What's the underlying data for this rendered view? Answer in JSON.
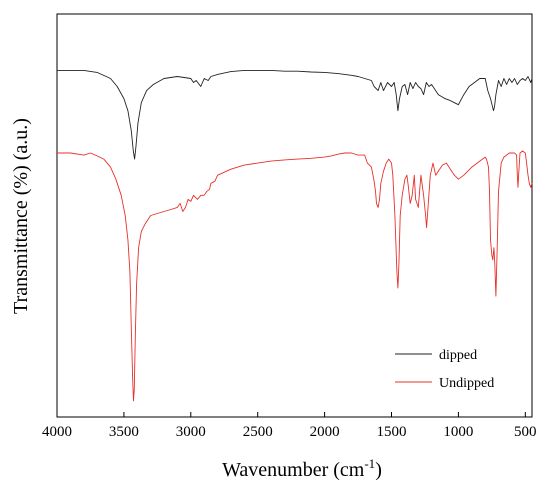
{
  "chart_data": {
    "type": "line",
    "xlabel": "Wavenumber (cm",
    "xlabel_sup": "-1",
    "xlabel_tail": ")",
    "ylabel": "Transmittance (%) (a.u.)",
    "xlim": [
      4000,
      450
    ],
    "x_reversed": true,
    "ylim": [
      0,
      1
    ],
    "y_ticks_shown": false,
    "grid": false,
    "legend_position": "bottom-right",
    "x_ticks": [
      4000,
      3500,
      3000,
      2500,
      2000,
      1500,
      1000,
      500
    ],
    "x_tick_labels": [
      "4000",
      "3500",
      "3000",
      "2500",
      "2000",
      "1500",
      "1000",
      "500"
    ],
    "series": [
      {
        "name": "dipped",
        "color": "#222222",
        "x": [
          4000,
          3800,
          3700,
          3600,
          3550,
          3500,
          3470,
          3445,
          3430,
          3420,
          3410,
          3395,
          3370,
          3330,
          3280,
          3200,
          3100,
          3000,
          2980,
          2960,
          2925,
          2900,
          2870,
          2850,
          2800,
          2700,
          2600,
          2500,
          2400,
          2300,
          2200,
          2100,
          2000,
          1900,
          1800,
          1750,
          1700,
          1650,
          1630,
          1600,
          1580,
          1560,
          1530,
          1500,
          1480,
          1465,
          1452,
          1440,
          1420,
          1400,
          1380,
          1360,
          1340,
          1320,
          1300,
          1280,
          1260,
          1240,
          1220,
          1200,
          1150,
          1100,
          1060,
          1030,
          1000,
          960,
          920,
          880,
          860,
          840,
          800,
          780,
          760,
          745,
          738,
          730,
          720,
          700,
          680,
          660,
          640,
          620,
          600,
          580,
          560,
          540,
          520,
          500,
          480,
          460,
          450
        ],
        "y": [
          0.86,
          0.86,
          0.855,
          0.84,
          0.82,
          0.79,
          0.76,
          0.71,
          0.66,
          0.64,
          0.67,
          0.73,
          0.78,
          0.81,
          0.825,
          0.84,
          0.845,
          0.84,
          0.83,
          0.835,
          0.82,
          0.84,
          0.835,
          0.845,
          0.85,
          0.857,
          0.86,
          0.86,
          0.86,
          0.858,
          0.858,
          0.856,
          0.855,
          0.852,
          0.848,
          0.845,
          0.84,
          0.835,
          0.82,
          0.81,
          0.83,
          0.81,
          0.83,
          0.82,
          0.83,
          0.8,
          0.76,
          0.79,
          0.82,
          0.825,
          0.8,
          0.83,
          0.815,
          0.83,
          0.82,
          0.815,
          0.8,
          0.83,
          0.82,
          0.825,
          0.8,
          0.79,
          0.785,
          0.78,
          0.775,
          0.8,
          0.82,
          0.83,
          0.835,
          0.84,
          0.84,
          0.81,
          0.79,
          0.77,
          0.76,
          0.77,
          0.8,
          0.835,
          0.82,
          0.84,
          0.825,
          0.84,
          0.83,
          0.84,
          0.825,
          0.835,
          0.84,
          0.835,
          0.845,
          0.83,
          0.84
        ]
      },
      {
        "name": "Undipped",
        "color": "#e8302a",
        "x": [
          4000,
          3900,
          3800,
          3750,
          3700,
          3650,
          3600,
          3560,
          3520,
          3490,
          3470,
          3455,
          3445,
          3435,
          3428,
          3422,
          3415,
          3405,
          3390,
          3370,
          3340,
          3300,
          3250,
          3200,
          3150,
          3100,
          3080,
          3060,
          3040,
          3020,
          3000,
          2980,
          2950,
          2925,
          2900,
          2880,
          2860,
          2850,
          2820,
          2800,
          2700,
          2600,
          2500,
          2400,
          2300,
          2200,
          2100,
          2000,
          1950,
          1900,
          1850,
          1800,
          1750,
          1700,
          1680,
          1650,
          1630,
          1620,
          1612,
          1600,
          1590,
          1580,
          1560,
          1540,
          1520,
          1500,
          1490,
          1475,
          1460,
          1452,
          1445,
          1435,
          1420,
          1400,
          1385,
          1375,
          1360,
          1345,
          1330,
          1320,
          1300,
          1280,
          1260,
          1245,
          1238,
          1225,
          1210,
          1190,
          1170,
          1150,
          1120,
          1090,
          1060,
          1030,
          1000,
          980,
          960,
          930,
          900,
          880,
          860,
          840,
          820,
          800,
          790,
          775,
          768,
          760,
          750,
          743,
          735,
          728,
          720,
          710,
          700,
          680,
          660,
          640,
          620,
          600,
          580,
          565,
          560,
          555,
          550,
          540,
          520,
          500,
          490,
          480,
          470,
          460,
          450
        ],
        "y": [
          0.655,
          0.655,
          0.65,
          0.655,
          0.648,
          0.64,
          0.62,
          0.59,
          0.55,
          0.5,
          0.44,
          0.36,
          0.22,
          0.1,
          0.04,
          0.07,
          0.2,
          0.33,
          0.42,
          0.46,
          0.48,
          0.5,
          0.505,
          0.51,
          0.515,
          0.52,
          0.53,
          0.51,
          0.52,
          0.54,
          0.535,
          0.55,
          0.54,
          0.55,
          0.55,
          0.56,
          0.565,
          0.58,
          0.585,
          0.6,
          0.615,
          0.625,
          0.63,
          0.635,
          0.638,
          0.64,
          0.642,
          0.645,
          0.648,
          0.652,
          0.655,
          0.655,
          0.65,
          0.65,
          0.63,
          0.62,
          0.585,
          0.56,
          0.53,
          0.52,
          0.54,
          0.58,
          0.61,
          0.63,
          0.64,
          0.63,
          0.6,
          0.5,
          0.36,
          0.32,
          0.38,
          0.5,
          0.55,
          0.59,
          0.6,
          0.575,
          0.53,
          0.55,
          0.6,
          0.54,
          0.52,
          0.6,
          0.55,
          0.5,
          0.47,
          0.53,
          0.6,
          0.63,
          0.6,
          0.61,
          0.625,
          0.63,
          0.615,
          0.6,
          0.59,
          0.595,
          0.6,
          0.61,
          0.62,
          0.625,
          0.63,
          0.635,
          0.64,
          0.645,
          0.64,
          0.62,
          0.56,
          0.44,
          0.4,
          0.39,
          0.42,
          0.38,
          0.3,
          0.42,
          0.56,
          0.63,
          0.645,
          0.65,
          0.655,
          0.655,
          0.655,
          0.65,
          0.6,
          0.57,
          0.6,
          0.655,
          0.66,
          0.655,
          0.63,
          0.6,
          0.58,
          0.57,
          0.58
        ]
      }
    ]
  }
}
